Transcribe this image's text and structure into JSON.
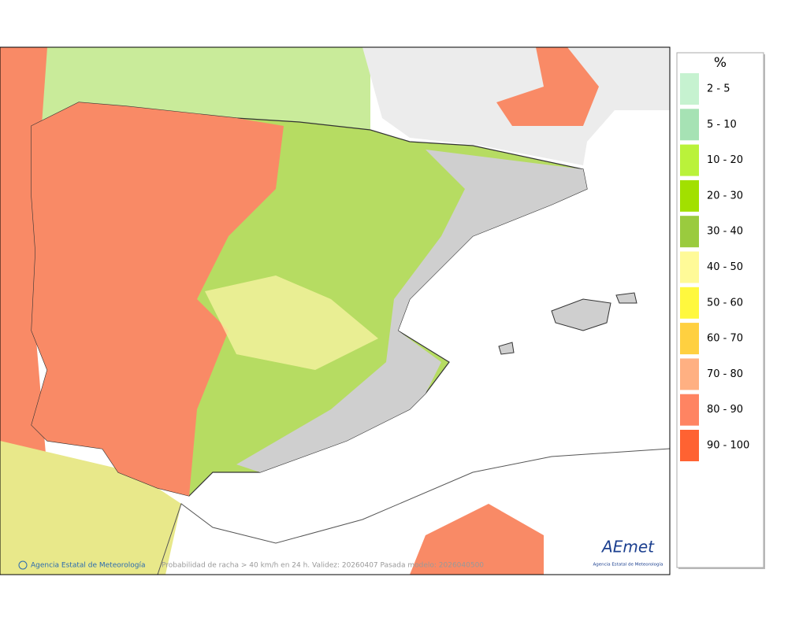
{
  "legend": {
    "title": "%",
    "items": [
      {
        "label": "2 - 5",
        "color": "#c6f2d0"
      },
      {
        "label": "5 - 10",
        "color": "#a6e2b4"
      },
      {
        "label": "10 - 20",
        "color": "#baf23a"
      },
      {
        "label": "20 - 30",
        "color": "#a2e000"
      },
      {
        "label": "30 - 40",
        "color": "#9acb3e"
      },
      {
        "label": "40 - 50",
        "color": "#fffa98"
      },
      {
        "label": "50 - 60",
        "color": "#fff83e"
      },
      {
        "label": "60 - 70",
        "color": "#ffd040"
      },
      {
        "label": "70 - 80",
        "color": "#ffb082"
      },
      {
        "label": "80 - 90",
        "color": "#ff8462"
      },
      {
        "label": "90 - 100",
        "color": "#ff6232"
      }
    ]
  },
  "footer": {
    "credit": "Agencia Estatal de Meteorología",
    "caption": "Probabilidad de racha > 40 km/h en 24 h. Validez: 20260407 Pasada modelo: 2026040500"
  },
  "logo": {
    "name": "AEmet",
    "subtitle": "Agencia Estatal de Meteorología"
  }
}
